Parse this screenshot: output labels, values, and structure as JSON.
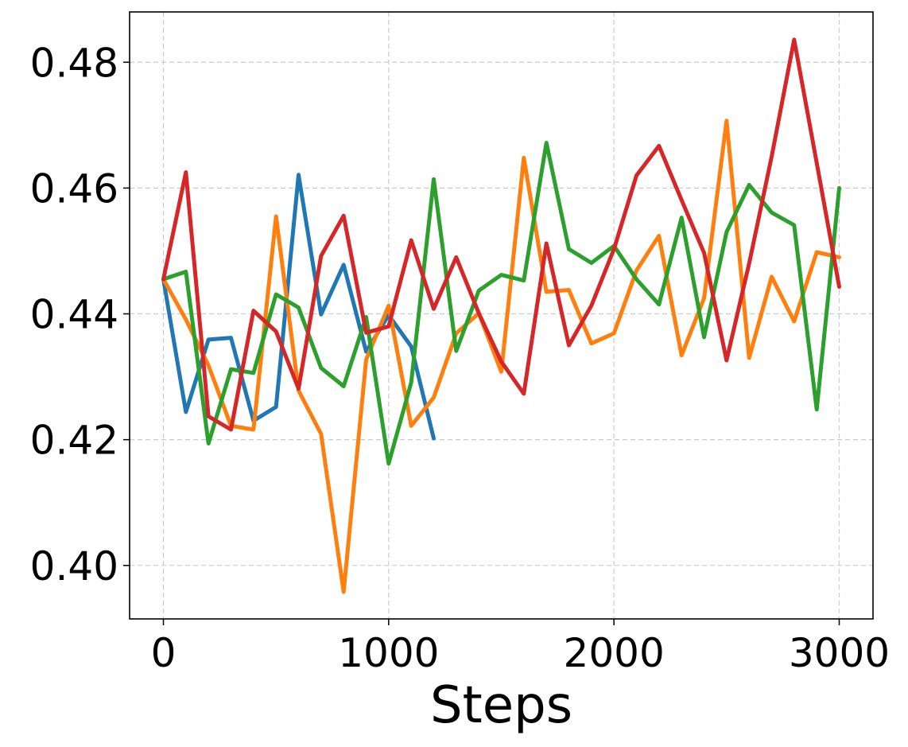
{
  "chart_data": {
    "type": "line",
    "title": "",
    "xlabel": "Steps",
    "ylabel": "",
    "xlim": [
      -150,
      3150
    ],
    "ylim": [
      0.3915,
      0.488
    ],
    "x_ticks": [
      0,
      1000,
      2000,
      3000
    ],
    "y_ticks": [
      0.4,
      0.42,
      0.44,
      0.46,
      0.48
    ],
    "x_tick_labels": [
      "0",
      "1000",
      "2000",
      "3000"
    ],
    "y_tick_labels": [
      "0.40",
      "0.42",
      "0.44",
      "0.46",
      "0.48"
    ],
    "grid": true,
    "legend": "none",
    "series": [
      {
        "color": "#1f77b4",
        "x": [
          0,
          100,
          200,
          300,
          400,
          500,
          600,
          700,
          800,
          900,
          1000,
          1100,
          1200
        ],
        "y": [
          0.4455,
          0.4244,
          0.4359,
          0.4362,
          0.423,
          0.4252,
          0.4621,
          0.4399,
          0.4478,
          0.434,
          0.4398,
          0.4348,
          0.4202
        ]
      },
      {
        "color": "#ff7f0e",
        "x": [
          0,
          100,
          200,
          300,
          400,
          500,
          600,
          700,
          800,
          900,
          1000,
          1100,
          1200,
          1300,
          1400,
          1500,
          1600,
          1700,
          1800,
          1900,
          2000,
          2100,
          2200,
          2300,
          2400,
          2500,
          2600,
          2700,
          2800,
          2900,
          3000
        ],
        "y": [
          0.4455,
          0.4391,
          0.4318,
          0.4222,
          0.4216,
          0.4555,
          0.4278,
          0.4209,
          0.3958,
          0.4327,
          0.4413,
          0.4222,
          0.4267,
          0.4369,
          0.4401,
          0.4308,
          0.4648,
          0.4435,
          0.4438,
          0.4353,
          0.4369,
          0.4469,
          0.4524,
          0.4334,
          0.4425,
          0.4707,
          0.433,
          0.4459,
          0.4388,
          0.4498,
          0.449
        ]
      },
      {
        "color": "#2ca02c",
        "x": [
          0,
          100,
          200,
          300,
          400,
          500,
          600,
          700,
          800,
          900,
          1000,
          1100,
          1200,
          1300,
          1400,
          1500,
          1600,
          1700,
          1800,
          1900,
          2000,
          2100,
          2200,
          2300,
          2400,
          2500,
          2600,
          2700,
          2800,
          2900,
          3000
        ],
        "y": [
          0.4455,
          0.4467,
          0.4194,
          0.4312,
          0.4306,
          0.4431,
          0.441,
          0.4314,
          0.4285,
          0.4395,
          0.4162,
          0.4291,
          0.4614,
          0.4341,
          0.4437,
          0.4462,
          0.4453,
          0.4672,
          0.4503,
          0.4481,
          0.4508,
          0.4455,
          0.4415,
          0.4553,
          0.4363,
          0.453,
          0.4605,
          0.4561,
          0.4541,
          0.4248,
          0.46
        ]
      },
      {
        "color": "#d62728",
        "x": [
          0,
          100,
          200,
          300,
          400,
          500,
          600,
          700,
          800,
          900,
          1000,
          1100,
          1200,
          1300,
          1400,
          1500,
          1600,
          1700,
          1800,
          1900,
          2000,
          2100,
          2200,
          2300,
          2400,
          2500,
          2600,
          2700,
          2800,
          2900,
          3000
        ],
        "y": [
          0.4455,
          0.4625,
          0.4237,
          0.4216,
          0.4405,
          0.4372,
          0.4281,
          0.4492,
          0.4556,
          0.437,
          0.438,
          0.4517,
          0.4408,
          0.449,
          0.4401,
          0.4324,
          0.4273,
          0.4512,
          0.435,
          0.4413,
          0.4503,
          0.462,
          0.4667,
          0.4581,
          0.4497,
          0.4326,
          0.448,
          0.465,
          0.4836,
          0.464,
          0.4443
        ]
      }
    ]
  }
}
